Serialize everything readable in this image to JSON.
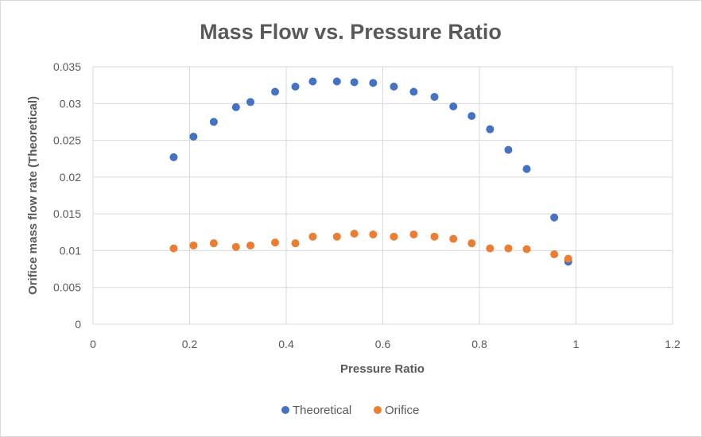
{
  "chart_data": {
    "type": "scatter",
    "title": "Mass Flow vs. Pressure Ratio",
    "xlabel": "Pressure Ratio",
    "ylabel": "Orifice mass flow rate (Theoretical)",
    "xlim": [
      0,
      1.2
    ],
    "ylim": [
      0,
      0.035
    ],
    "xticks": [
      "0",
      "0.2",
      "0.4",
      "0.6",
      "0.8",
      "1",
      "1.2"
    ],
    "yticks": [
      "0",
      "0.005",
      "0.01",
      "0.015",
      "0.02",
      "0.025",
      "0.03",
      "0.035"
    ],
    "grid": true,
    "legend_position": "bottom",
    "series": [
      {
        "name": "Theoretical",
        "color": "#4472c4",
        "x": [
          0.167,
          0.208,
          0.25,
          0.296,
          0.326,
          0.377,
          0.419,
          0.455,
          0.505,
          0.541,
          0.58,
          0.623,
          0.664,
          0.707,
          0.746,
          0.784,
          0.822,
          0.86,
          0.898,
          0.955,
          0.984
        ],
        "y": [
          0.0227,
          0.0255,
          0.0275,
          0.0295,
          0.0302,
          0.0316,
          0.0323,
          0.033,
          0.033,
          0.0329,
          0.0328,
          0.0323,
          0.0316,
          0.0309,
          0.0296,
          0.0283,
          0.0265,
          0.0237,
          0.0211,
          0.0145,
          0.0085
        ]
      },
      {
        "name": "Orifice",
        "color": "#ed7d31",
        "x": [
          0.167,
          0.208,
          0.25,
          0.296,
          0.326,
          0.377,
          0.419,
          0.455,
          0.505,
          0.541,
          0.58,
          0.623,
          0.664,
          0.707,
          0.746,
          0.784,
          0.822,
          0.86,
          0.898,
          0.955,
          0.984
        ],
        "y": [
          0.0103,
          0.0107,
          0.011,
          0.0105,
          0.0107,
          0.0111,
          0.011,
          0.0119,
          0.0119,
          0.0123,
          0.0122,
          0.0119,
          0.0122,
          0.0119,
          0.0116,
          0.011,
          0.0103,
          0.0103,
          0.0102,
          0.0095,
          0.0089
        ]
      }
    ]
  }
}
